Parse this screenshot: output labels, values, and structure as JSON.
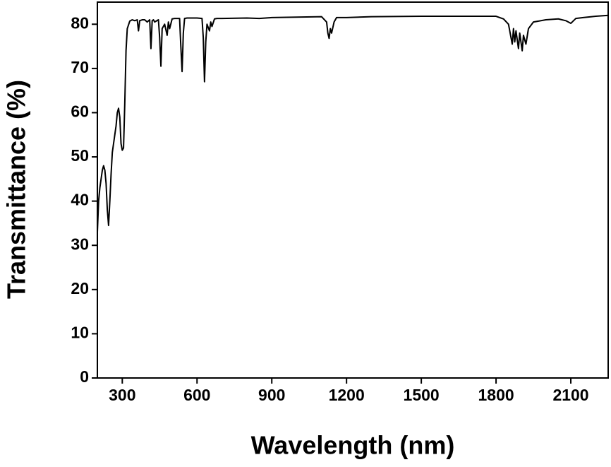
{
  "chart_data": {
    "type": "line",
    "xlabel": "Wavelength (nm)",
    "ylabel": "Transmittance (%)",
    "xlim": [
      200,
      2250
    ],
    "ylim": [
      0,
      85
    ],
    "xticks": [
      300,
      600,
      900,
      1200,
      1500,
      1800,
      2100
    ],
    "yticks": [
      0,
      10,
      20,
      30,
      40,
      50,
      60,
      70,
      80
    ],
    "grid": false,
    "series": [
      {
        "color": "#000000",
        "x": [
          200,
          205,
          210,
          215,
          220,
          225,
          230,
          235,
          240,
          245,
          250,
          255,
          260,
          265,
          270,
          275,
          280,
          285,
          290,
          295,
          300,
          305,
          310,
          315,
          320,
          330,
          340,
          350,
          360,
          365,
          370,
          380,
          390,
          400,
          410,
          415,
          420,
          425,
          430,
          445,
          450,
          455,
          460,
          470,
          480,
          485,
          490,
          500,
          510,
          530,
          535,
          540,
          545,
          550,
          560,
          600,
          620,
          625,
          630,
          635,
          640,
          650,
          655,
          660,
          670,
          680,
          700,
          800,
          850,
          900,
          1000,
          1100,
          1120,
          1125,
          1130,
          1135,
          1140,
          1150,
          1160,
          1200,
          1300,
          1500,
          1700,
          1800,
          1830,
          1850,
          1860,
          1865,
          1870,
          1875,
          1880,
          1890,
          1895,
          1900,
          1905,
          1910,
          1920,
          1930,
          1950,
          2000,
          2050,
          2080,
          2100,
          2120,
          2150,
          2200,
          2250
        ],
        "values": [
          33,
          40,
          43,
          45,
          47,
          48,
          47,
          44,
          38,
          34.5,
          40,
          46,
          51,
          53,
          55,
          57,
          60,
          61,
          59,
          53,
          51.5,
          52,
          62,
          74,
          79,
          80.7,
          81,
          80.8,
          81,
          78.5,
          80.8,
          81,
          81,
          80.5,
          81,
          74.5,
          80.8,
          81,
          80.5,
          81,
          77,
          70.5,
          79,
          80,
          77.5,
          80.5,
          79,
          81.2,
          81.3,
          81.3,
          75,
          69.3,
          78,
          81.3,
          81.4,
          81.4,
          81.3,
          77,
          67,
          76,
          80,
          78.5,
          80.5,
          79.5,
          81.2,
          81.3,
          81.3,
          81.4,
          81.3,
          81.5,
          81.6,
          81.7,
          80.5,
          78,
          76.8,
          79,
          78,
          80.5,
          81.5,
          81.5,
          81.7,
          81.8,
          81.8,
          81.8,
          81.2,
          80,
          77,
          75.5,
          79,
          76,
          78.5,
          74.5,
          78,
          76,
          74,
          77.5,
          75.5,
          79,
          80.5,
          81,
          81.2,
          80.8,
          80.2,
          81.3,
          81.5,
          81.8,
          82
        ]
      }
    ]
  }
}
